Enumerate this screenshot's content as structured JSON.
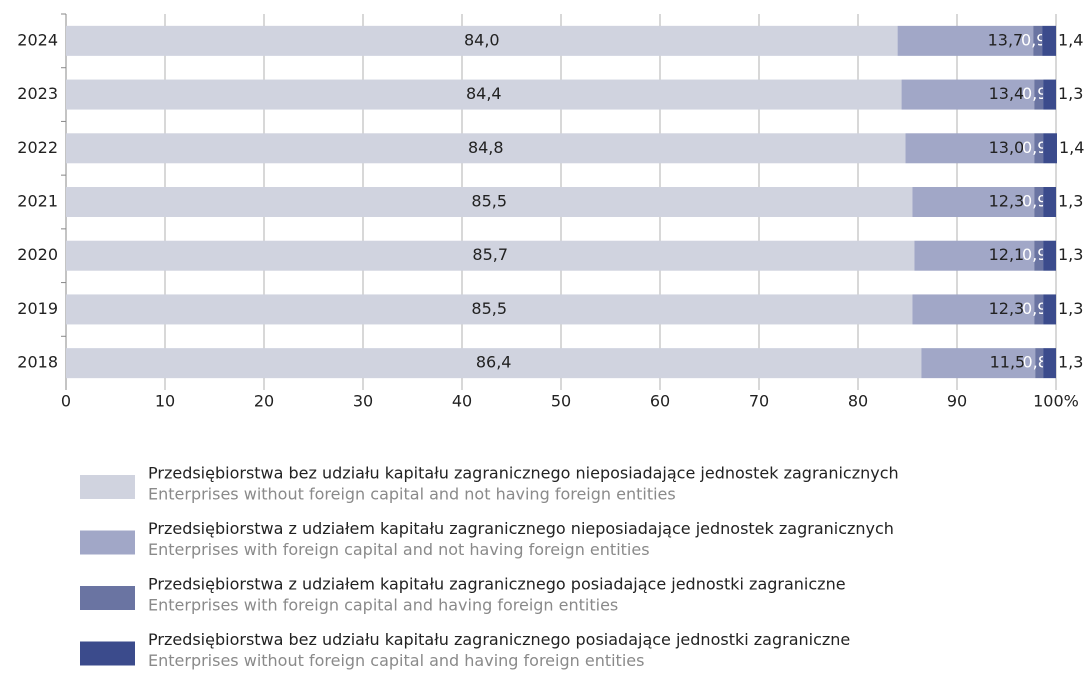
{
  "chart_data": {
    "type": "stacked-barh",
    "categories": [
      "2024",
      "2023",
      "2022",
      "2021",
      "2020",
      "2019",
      "2018"
    ],
    "series": [
      {
        "name": "Przedsiębiorstwa bez udziału kapitału zagranicznego nieposiadające jednostek zagranicznych",
        "name_en": "Enterprises without foreign capital and not having foreign entities",
        "color": "#d0d3df",
        "values": [
          84.0,
          84.4,
          84.8,
          85.5,
          85.7,
          85.5,
          86.4
        ],
        "value_labels": [
          "84,0",
          "84,4",
          "84,8",
          "85,5",
          "85,7",
          "85,5",
          "86,4"
        ]
      },
      {
        "name": "Przedsiębiorstwa z udziałem kapitału zagranicznego nieposiadające jednostek zagranicznych",
        "name_en": "Enterprises with foreign capital and not having foreign entities",
        "color": "#a1a7c7",
        "values": [
          13.7,
          13.4,
          13.0,
          12.3,
          12.1,
          12.3,
          11.5
        ],
        "value_labels": [
          "13,7",
          "13,4",
          "13,0",
          "12,3",
          "12,1",
          "12,3",
          "11,5"
        ]
      },
      {
        "name": "Przedsiębiorstwa z udziałem kapitału zagranicznego posiadające jednostki zagraniczne",
        "name_en": "Enterprises with foreign capital and having foreign entities",
        "color": "#6a74a2",
        "values": [
          0.9,
          0.9,
          0.9,
          0.9,
          0.9,
          0.9,
          0.8
        ],
        "value_labels": [
          "0,9",
          "0,9",
          "0,9",
          "0,9",
          "0,9",
          "0,9",
          "0,8"
        ]
      },
      {
        "name": "Przedsiębiorstwa bez udziału kapitału zagranicznego posiadające jednostki zagraniczne",
        "name_en": "Enterprises without foreign capital and having foreign entities",
        "color": "#3b4b8c",
        "values": [
          1.4,
          1.3,
          1.4,
          1.3,
          1.3,
          1.3,
          1.3
        ],
        "value_labels": [
          "1,4",
          "1,3",
          "1,4",
          "1,3",
          "1,3",
          "1,3",
          "1,3"
        ]
      }
    ],
    "xlim": [
      0,
      100
    ],
    "xticks": [
      0,
      10,
      20,
      30,
      40,
      50,
      60,
      70,
      80,
      90,
      {
        "value": 100,
        "label": "100%"
      }
    ],
    "grid": true
  }
}
